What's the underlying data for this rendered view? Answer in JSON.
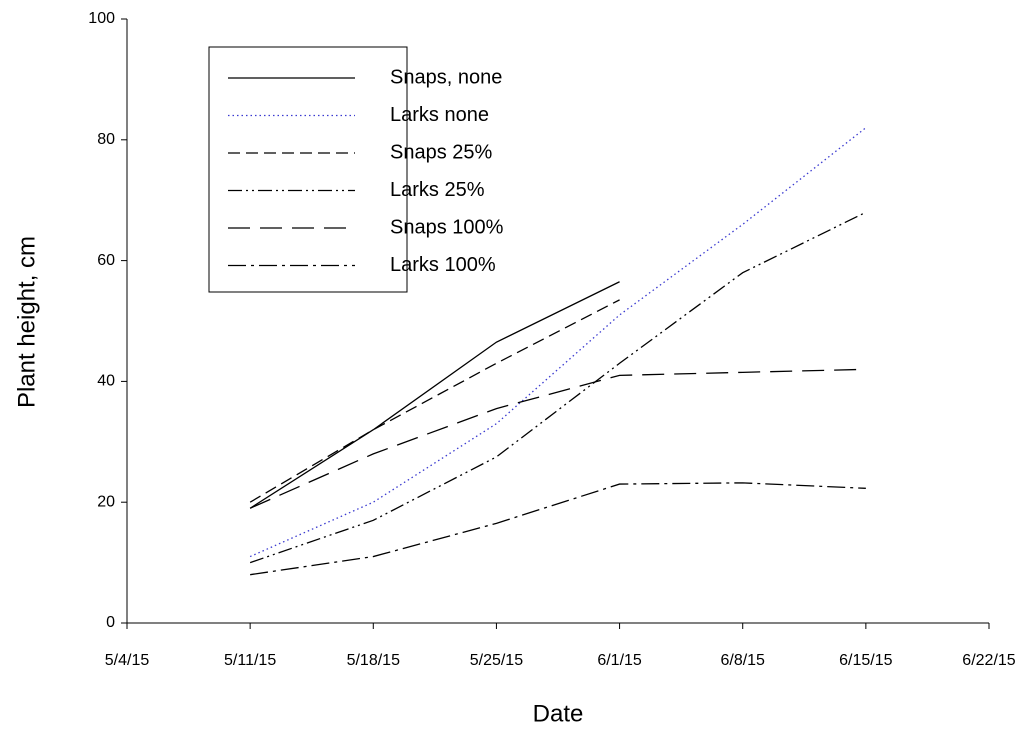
{
  "chart_data": {
    "type": "line",
    "x_label": "Date",
    "y_label": "Plant height, cm",
    "x": [
      "5/11/15",
      "5/18/15",
      "5/25/15",
      "6/1/15",
      "6/8/15",
      "6/15/15"
    ],
    "xlim": [
      "5/4/15",
      "6/22/15"
    ],
    "xticks": [
      "5/4/15",
      "5/11/15",
      "5/18/15",
      "5/25/15",
      "6/1/15",
      "6/8/15",
      "6/15/15",
      "6/22/15"
    ],
    "ylim": [
      0,
      100
    ],
    "yticks": [
      0,
      20,
      40,
      60,
      80,
      100
    ],
    "legend": "upper left",
    "series": [
      {
        "name": "Snaps, none",
        "color": "#000000",
        "style": "solid",
        "values": [
          19,
          32,
          46.5,
          56.5,
          null,
          null
        ]
      },
      {
        "name": "Larks none",
        "color": "#3a3ad0",
        "style": "dotted",
        "values": [
          11,
          20,
          33,
          51,
          66,
          82
        ]
      },
      {
        "name": "Snaps 25%",
        "color": "#000000",
        "style": "dashed",
        "values": [
          20,
          32,
          43,
          53.5,
          null,
          null
        ]
      },
      {
        "name": "Larks 25%",
        "color": "#000000",
        "style": "dash-dot-dot",
        "values": [
          10,
          17,
          27.5,
          43,
          58,
          68
        ]
      },
      {
        "name": "Snaps 100%",
        "color": "#000000",
        "style": "long-dash",
        "values": [
          19,
          28,
          35.5,
          41,
          41.5,
          42
        ]
      },
      {
        "name": "Larks 100%",
        "color": "#000000",
        "style": "dash-dot",
        "values": [
          8,
          11,
          16.5,
          23,
          23.2,
          22.3
        ]
      }
    ]
  }
}
